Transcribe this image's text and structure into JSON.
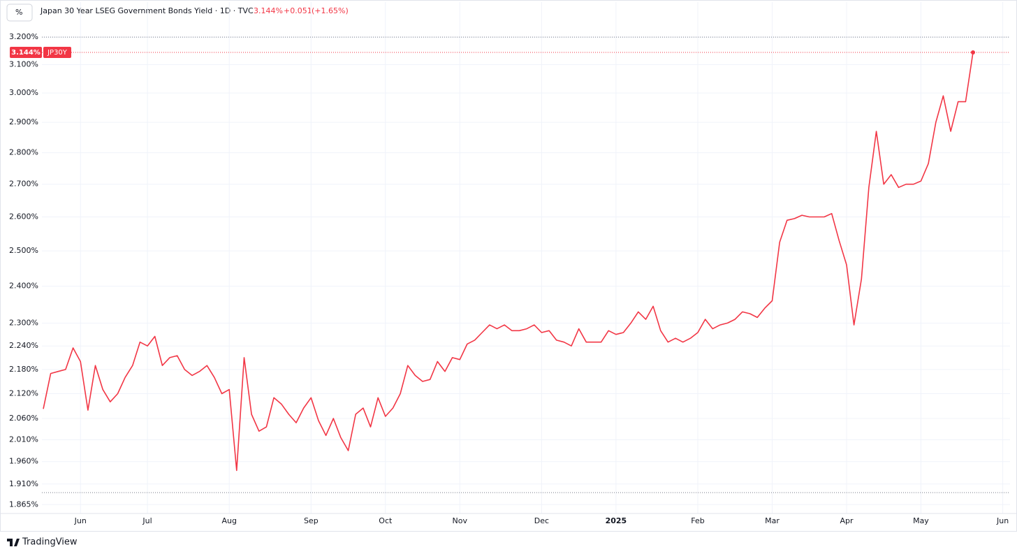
{
  "header": {
    "unit_button": "%",
    "title": "Japan 30 Year LSEG Government Bonds Yield · 1D · TVC",
    "change": "+0.051",
    "change_pct": "(+1.65%)"
  },
  "footer": {
    "brand": "TradingView"
  },
  "chart_data": {
    "type": "line",
    "log_scale": true,
    "grid": true,
    "color": "#f23645",
    "ylim": [
      1.846,
      3.332
    ],
    "yticks": [
      {
        "value": 3.2,
        "label": "3.200%"
      },
      {
        "value": 3.1,
        "label": "3.100%"
      },
      {
        "value": 3.0,
        "label": "3.000%"
      },
      {
        "value": 2.9,
        "label": "2.900%"
      },
      {
        "value": 2.8,
        "label": "2.800%"
      },
      {
        "value": 2.7,
        "label": "2.700%"
      },
      {
        "value": 2.6,
        "label": "2.600%"
      },
      {
        "value": 2.5,
        "label": "2.500%"
      },
      {
        "value": 2.4,
        "label": "2.400%"
      },
      {
        "value": 2.3,
        "label": "2.300%"
      },
      {
        "value": 2.24,
        "label": "2.240%"
      },
      {
        "value": 2.18,
        "label": "2.180%"
      },
      {
        "value": 2.12,
        "label": "2.120%"
      },
      {
        "value": 2.06,
        "label": "2.060%"
      },
      {
        "value": 2.01,
        "label": "2.010%"
      },
      {
        "value": 1.96,
        "label": "1.960%"
      },
      {
        "value": 1.91,
        "label": "1.910%"
      },
      {
        "value": 1.865,
        "label": "1.865%"
      }
    ],
    "range_lines": [
      3.2,
      1.891
    ],
    "price_tag": {
      "value": 3.144,
      "label": "3.144%",
      "symbol": "JP30Y"
    },
    "categories": [
      null,
      null,
      null,
      null,
      null,
      "Jun",
      null,
      null,
      null,
      null,
      null,
      null,
      null,
      null,
      "Jul",
      null,
      null,
      null,
      null,
      null,
      null,
      null,
      null,
      null,
      null,
      "Aug",
      null,
      null,
      null,
      null,
      null,
      null,
      null,
      null,
      null,
      null,
      "Sep",
      null,
      null,
      null,
      null,
      null,
      null,
      null,
      null,
      null,
      "Oct",
      null,
      null,
      null,
      null,
      null,
      null,
      null,
      null,
      null,
      "Nov",
      null,
      null,
      null,
      null,
      null,
      null,
      null,
      null,
      null,
      null,
      "Dec",
      null,
      null,
      null,
      null,
      null,
      null,
      null,
      null,
      null,
      "2025",
      null,
      null,
      null,
      null,
      null,
      null,
      null,
      null,
      null,
      null,
      "Feb",
      null,
      null,
      null,
      null,
      null,
      null,
      null,
      null,
      null,
      "Mar",
      null,
      null,
      null,
      null,
      null,
      null,
      null,
      null,
      null,
      "Apr",
      null,
      null,
      null,
      null,
      null,
      null,
      null,
      null,
      null,
      "May",
      null,
      null,
      null,
      null,
      null,
      null,
      null,
      null,
      null,
      null,
      "Jun"
    ],
    "values": [
      2.083,
      2.17,
      2.175,
      2.18,
      2.235,
      2.2,
      2.08,
      2.19,
      2.13,
      2.1,
      2.12,
      2.16,
      2.19,
      2.25,
      2.24,
      2.265,
      2.19,
      2.21,
      2.215,
      2.18,
      2.165,
      2.175,
      2.19,
      2.16,
      2.12,
      2.13,
      1.94,
      2.21,
      2.07,
      2.03,
      2.04,
      2.11,
      2.095,
      2.07,
      2.05,
      2.085,
      2.11,
      2.055,
      2.02,
      2.06,
      2.015,
      1.985,
      2.07,
      2.085,
      2.04,
      2.11,
      2.065,
      2.085,
      2.12,
      2.19,
      2.165,
      2.15,
      2.155,
      2.2,
      2.175,
      2.21,
      2.205,
      2.245,
      2.255,
      2.275,
      2.295,
      2.285,
      2.295,
      2.28,
      2.28,
      2.285,
      2.295,
      2.275,
      2.28,
      2.255,
      2.25,
      2.24,
      2.285,
      2.25,
      2.25,
      2.25,
      2.28,
      2.27,
      2.275,
      2.3,
      2.33,
      2.31,
      2.345,
      2.28,
      2.25,
      2.26,
      2.25,
      2.26,
      2.275,
      2.31,
      2.285,
      2.295,
      2.3,
      2.31,
      2.33,
      2.325,
      2.315,
      2.34,
      2.36,
      2.525,
      2.59,
      2.595,
      2.605,
      2.6,
      2.6,
      2.6,
      2.61,
      2.53,
      2.46,
      2.295,
      2.42,
      2.69,
      2.87,
      2.7,
      2.73,
      2.69,
      2.7,
      2.7,
      2.71,
      2.765,
      2.9,
      2.99,
      2.87,
      2.97,
      2.97,
      3.144,
      null,
      null,
      null,
      null
    ]
  }
}
